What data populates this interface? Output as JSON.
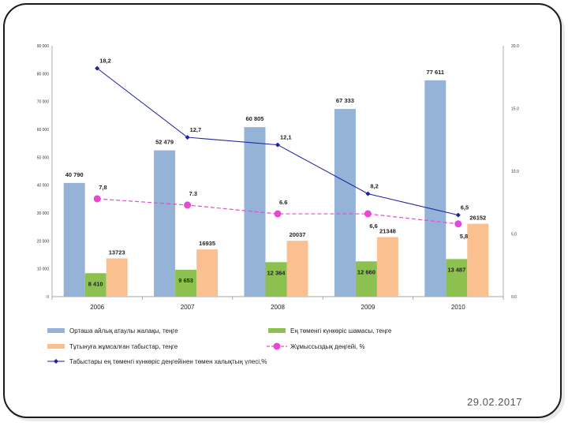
{
  "slide": {
    "date": "29.02.2017"
  },
  "chart_data": {
    "type": "bar",
    "title": "",
    "categories": [
      "2006",
      "2007",
      "2008",
      "2009",
      "2010"
    ],
    "left_axis": {
      "ylim": [
        0,
        90000
      ],
      "ticks": [
        "0",
        "10 000",
        "20 000",
        "30 000",
        "40 000",
        "50 000",
        "60 000",
        "70 000",
        "80 000",
        "90 000"
      ]
    },
    "right_axis": {
      "ylim": [
        0,
        20
      ],
      "ticks": [
        "0.0",
        "5.0",
        "10.0",
        "15.0",
        "20.0"
      ]
    },
    "series": [
      {
        "name": "Орташа айлық атаулы жалақы, теңге",
        "kind": "bar",
        "axis": "left",
        "color": "#95b3d7",
        "values": [
          40790,
          52479,
          60805,
          67333,
          77611
        ],
        "labels": [
          "40 790",
          "52 479",
          "60 805",
          "67 333",
          "77 611"
        ]
      },
      {
        "name": "Ең төменгі күнкөріс шамасы, теңге",
        "kind": "bar",
        "axis": "left",
        "color": "#8dc14f",
        "values": [
          8410,
          9653,
          12364,
          12660,
          13487
        ],
        "labels": [
          "8 410",
          "9 653",
          "12 364",
          "12 660",
          "13 487"
        ]
      },
      {
        "name": "Тұтынуға жұмсалған табыстар, теңге",
        "kind": "bar",
        "axis": "left",
        "color": "#fac090",
        "values": [
          13723,
          16935,
          20037,
          21348,
          26152
        ],
        "labels": [
          "13723",
          "16935",
          "20037",
          "21348",
          "26152"
        ]
      },
      {
        "name": "Жұмыссыздық деңгейі, %",
        "kind": "line-dashed",
        "axis": "right",
        "color": "#e64ad2",
        "values": [
          7.8,
          7.3,
          6.6,
          6.6,
          5.8
        ],
        "labels": [
          "7,8",
          "7.3",
          "6.6",
          "6,6",
          "5,8"
        ]
      },
      {
        "name": "Табыстары ең төменгі күнкөріс деңгейінен төмен халықтың үлесі,%",
        "kind": "line",
        "axis": "right",
        "color": "#1f1fa3",
        "values": [
          18.2,
          12.7,
          12.1,
          8.2,
          6.5
        ],
        "labels": [
          "18,2",
          "12,7",
          "12,1",
          "8,2",
          "6,5"
        ]
      }
    ],
    "legend_position": "bottom"
  }
}
